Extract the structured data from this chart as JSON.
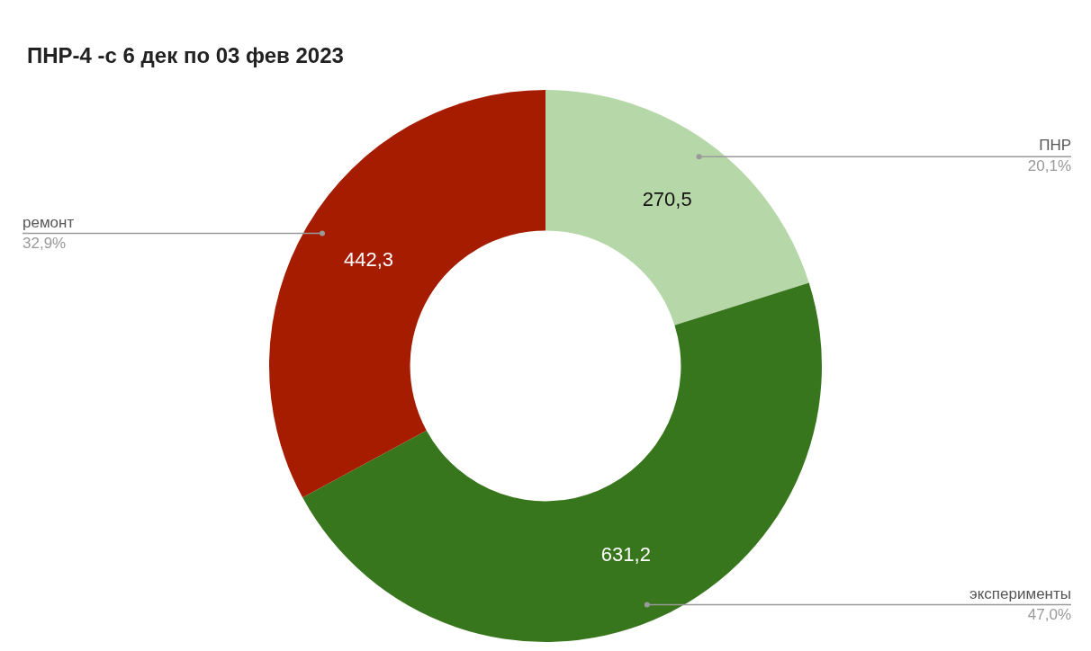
{
  "chart_data": {
    "type": "donut",
    "title": "ПНР-4 -с 6 дек по 03 фев 2023",
    "categories": [
      "ПНР",
      "эксперименты",
      "ремонт"
    ],
    "values": [
      270.5,
      631.2,
      442.3
    ],
    "colors": [
      "#b6d7a8",
      "#38761d",
      "#a61c00"
    ],
    "value_labels": [
      "270,5",
      "631,2",
      "442,3"
    ],
    "annotations": [
      {
        "text": "20,1%",
        "x": "ПНР"
      },
      {
        "text": "47,0%",
        "x": "эксперименты"
      },
      {
        "text": "32,9%",
        "x": "ремонт"
      }
    ],
    "legend": false
  }
}
